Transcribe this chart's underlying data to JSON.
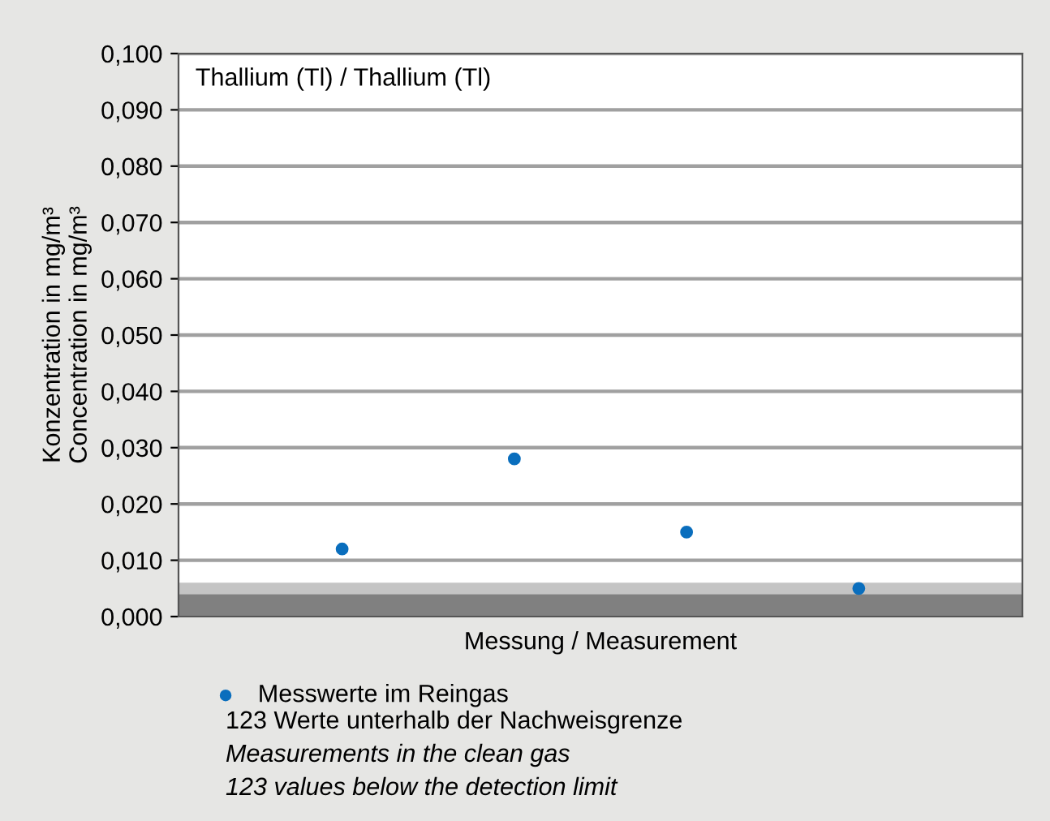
{
  "chart_data": {
    "type": "scatter",
    "title": "Thallium (Tl) / Thallium (Tl)",
    "xlabel": "Messung / Measurement",
    "ylabel": "Konzentration in mg/m³\nConcentration in mg/m³",
    "categories": [
      null,
      null,
      null,
      null
    ],
    "series": [
      {
        "name": "Messwerte im Reingas",
        "color": "#0a6ebd",
        "values": [
          0.012,
          0.028,
          0.015,
          0.005
        ]
      }
    ],
    "ylim": [
      0,
      0.1
    ],
    "yticks": [
      {
        "value": 0,
        "label": "0,000"
      },
      {
        "value": 0.01,
        "label": "0,010"
      },
      {
        "value": 0.02,
        "label": "0,020"
      },
      {
        "value": 0.03,
        "label": "0,030"
      },
      {
        "value": 0.04,
        "label": "0,040"
      },
      {
        "value": 0.05,
        "label": "0,050"
      },
      {
        "value": 0.06,
        "label": "0,060"
      },
      {
        "value": 0.07,
        "label": "0,070"
      },
      {
        "value": 0.08,
        "label": "0,080"
      },
      {
        "value": 0.09,
        "label": "0,090"
      },
      {
        "value": 0.1,
        "label": "0,100"
      }
    ],
    "bands": [
      {
        "axis": "y",
        "from": 0,
        "to": 0.004,
        "color": "#808080"
      },
      {
        "axis": "y",
        "from": 0.004,
        "to": 0.006,
        "color": "#c4c4c4"
      }
    ],
    "annotations": [
      "123 Werte unterhalb der Nachweisgrenze",
      "Measurements in the clean gas",
      "123 values below the detection limit"
    ],
    "grid": "y",
    "legend": "bottom",
    "marker": "circle"
  }
}
